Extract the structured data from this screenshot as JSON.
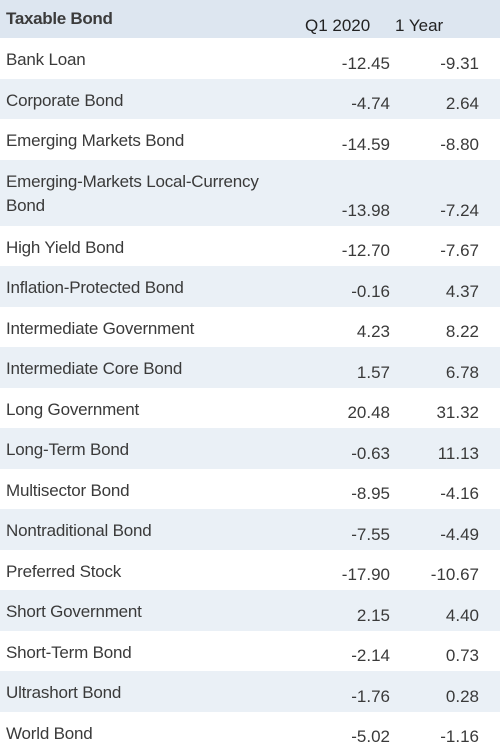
{
  "chart_data": {
    "type": "table",
    "title": "Taxable Bond",
    "columns": [
      "Q1 2020",
      "1 Year"
    ],
    "rows": [
      {
        "name": "Bank Loan",
        "q1_2020": "-12.45",
        "one_year": "-9.31"
      },
      {
        "name": "Corporate Bond",
        "q1_2020": "-4.74",
        "one_year": "2.64"
      },
      {
        "name": "Emerging Markets Bond",
        "q1_2020": "-14.59",
        "one_year": "-8.80"
      },
      {
        "name": "Emerging-Markets Local-Currency Bond",
        "q1_2020": "-13.98",
        "one_year": "-7.24"
      },
      {
        "name": "High Yield Bond",
        "q1_2020": "-12.70",
        "one_year": "-7.67"
      },
      {
        "name": "Inflation-Protected Bond",
        "q1_2020": "-0.16",
        "one_year": "4.37"
      },
      {
        "name": "Intermediate Government",
        "q1_2020": "4.23",
        "one_year": "8.22"
      },
      {
        "name": "Intermediate Core Bond",
        "q1_2020": "1.57",
        "one_year": "6.78"
      },
      {
        "name": "Long Government",
        "q1_2020": "20.48",
        "one_year": "31.32"
      },
      {
        "name": "Long-Term Bond",
        "q1_2020": "-0.63",
        "one_year": "11.13"
      },
      {
        "name": "Multisector Bond",
        "q1_2020": "-8.95",
        "one_year": "-4.16"
      },
      {
        "name": "Nontraditional Bond",
        "q1_2020": "-7.55",
        "one_year": "-4.49"
      },
      {
        "name": "Preferred Stock",
        "q1_2020": "-17.90",
        "one_year": "-10.67"
      },
      {
        "name": "Short Government",
        "q1_2020": "2.15",
        "one_year": "4.40"
      },
      {
        "name": "Short-Term Bond",
        "q1_2020": "-2.14",
        "one_year": "0.73"
      },
      {
        "name": "Ultrashort Bond",
        "q1_2020": "-1.76",
        "one_year": "0.28"
      },
      {
        "name": "World Bond",
        "q1_2020": "-5.02",
        "one_year": "-1.16"
      }
    ]
  },
  "colors": {
    "header_bg": "#dde6f0",
    "stripe_bg": "#eaf0f6",
    "text": "#3a3a3a"
  }
}
